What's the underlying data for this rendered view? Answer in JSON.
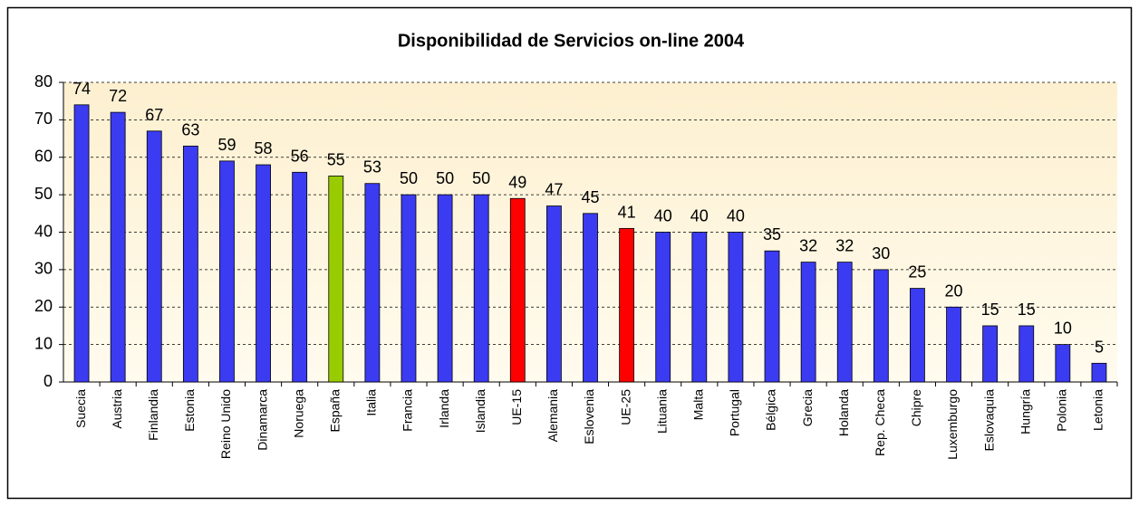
{
  "chart_data": {
    "type": "bar",
    "title": "Disponibilidad de Servicios on-line 2004",
    "categories": [
      "Suecia",
      "Austria",
      "Finlandia",
      "Estonia",
      "Reino Unido",
      "Dinamarca",
      "Noruega",
      "España",
      "Italia",
      "Francia",
      "Irlanda",
      "Islandia",
      "UE-15",
      "Alemania",
      "Eslovenia",
      "UE-25",
      "Lituania",
      "Malta",
      "Portugal",
      "Bélgica",
      "Grecia",
      "Holanda",
      "Rep. Checa",
      "Chipre",
      "Luxemburgo",
      "Eslovaquia",
      "Hungría",
      "Polonia",
      "Letonia"
    ],
    "values": [
      74,
      72,
      67,
      63,
      59,
      58,
      56,
      55,
      53,
      50,
      50,
      50,
      49,
      47,
      45,
      41,
      40,
      40,
      40,
      35,
      32,
      32,
      30,
      25,
      20,
      15,
      15,
      10,
      5
    ],
    "colors": [
      "#3b3bf2",
      "#3b3bf2",
      "#3b3bf2",
      "#3b3bf2",
      "#3b3bf2",
      "#3b3bf2",
      "#3b3bf2",
      "#99cc00",
      "#3b3bf2",
      "#3b3bf2",
      "#3b3bf2",
      "#3b3bf2",
      "#ff0000",
      "#3b3bf2",
      "#3b3bf2",
      "#ff0000",
      "#3b3bf2",
      "#3b3bf2",
      "#3b3bf2",
      "#3b3bf2",
      "#3b3bf2",
      "#3b3bf2",
      "#3b3bf2",
      "#3b3bf2",
      "#3b3bf2",
      "#3b3bf2",
      "#3b3bf2",
      "#3b3bf2",
      "#3b3bf2"
    ],
    "ylim": [
      0,
      80
    ],
    "yticks": [
      0,
      10,
      20,
      30,
      40,
      50,
      60,
      70,
      80
    ],
    "grid": true
  }
}
